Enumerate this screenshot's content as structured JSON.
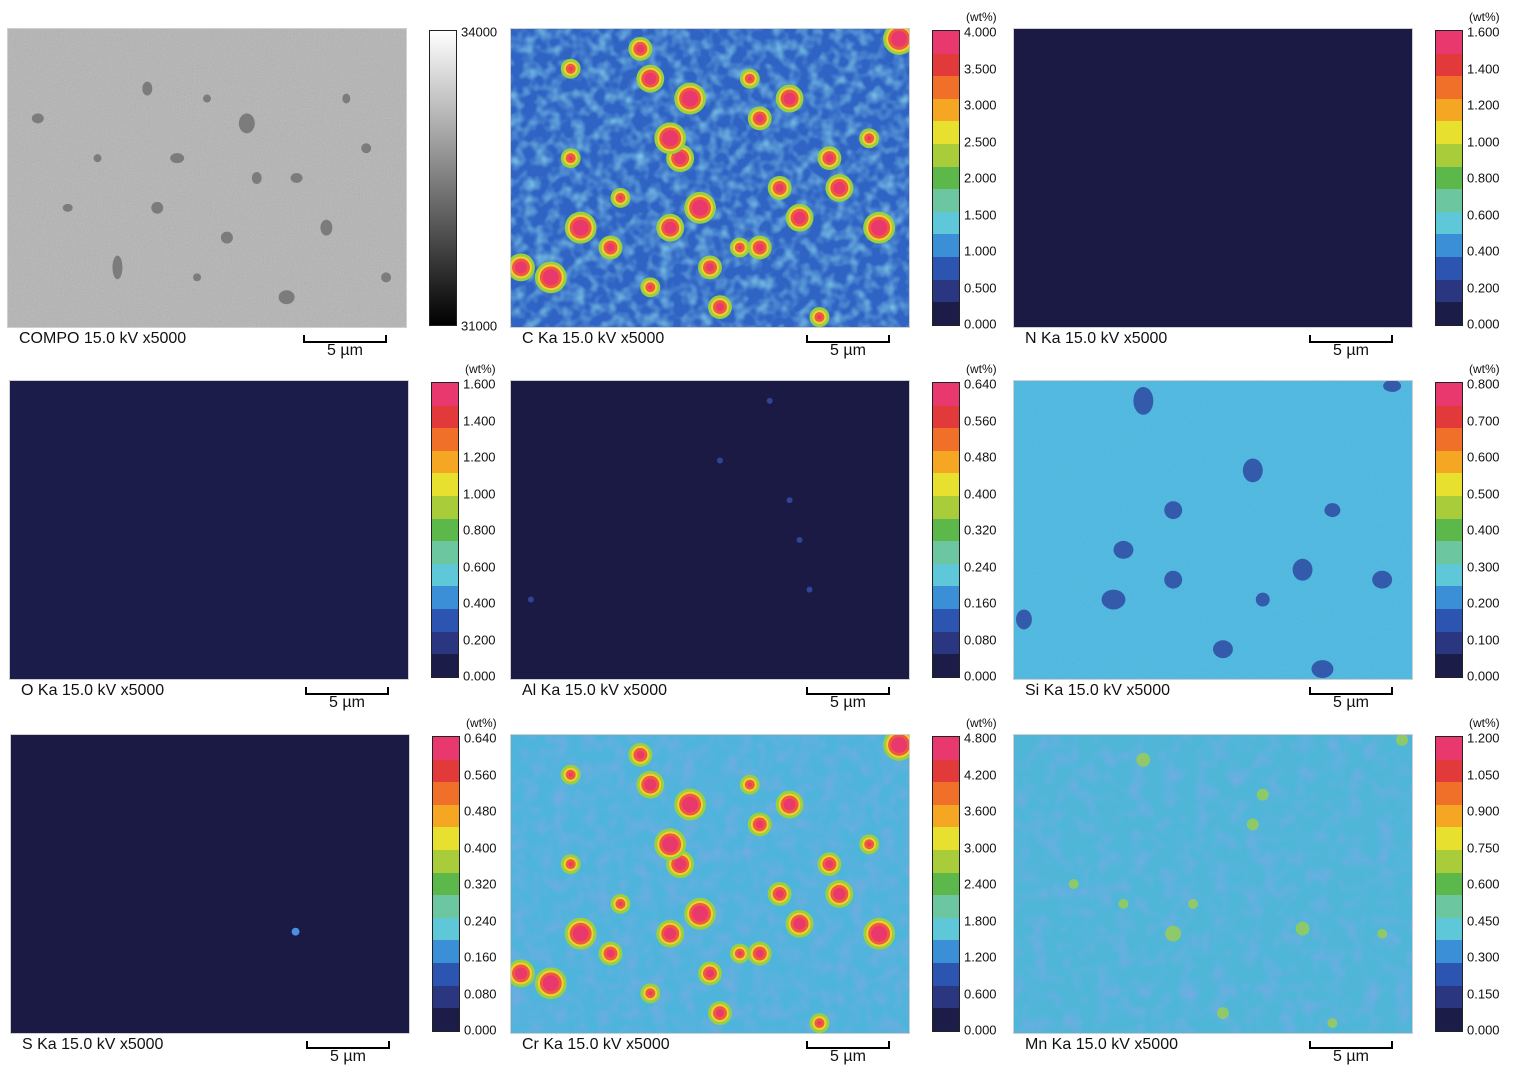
{
  "scale_label": "5 µm",
  "panels": [
    {
      "caption": "COMPO 15.0 kV x5000",
      "unit": "",
      "ticks": [
        "34000",
        "31000"
      ],
      "scale": "gray"
    },
    {
      "caption": "C Ka 15.0 kV x5000",
      "unit": "(wt%)",
      "ticks": [
        "4.000",
        "3.500",
        "3.000",
        "2.500",
        "2.000",
        "1.500",
        "1.000",
        "0.500",
        "0.000"
      ],
      "scale": "color"
    },
    {
      "caption": "N Ka 15.0 kV x5000",
      "unit": "(wt%)",
      "ticks": [
        "1.600",
        "1.400",
        "1.200",
        "1.000",
        "0.800",
        "0.600",
        "0.400",
        "0.200",
        "0.000"
      ],
      "scale": "color"
    },
    {
      "caption": "O Ka 15.0 kV x5000",
      "unit": "(wt%)",
      "ticks": [
        "1.600",
        "1.400",
        "1.200",
        "1.000",
        "0.800",
        "0.600",
        "0.400",
        "0.200",
        "0.000"
      ],
      "scale": "color"
    },
    {
      "caption": "Al Ka 15.0 kV x5000",
      "unit": "(wt%)",
      "ticks": [
        "0.640",
        "0.560",
        "0.480",
        "0.400",
        "0.320",
        "0.240",
        "0.160",
        "0.080",
        "0.000"
      ],
      "scale": "color"
    },
    {
      "caption": "Si Ka 15.0 kV x5000",
      "unit": "(wt%)",
      "ticks": [
        "0.800",
        "0.700",
        "0.600",
        "0.500",
        "0.400",
        "0.300",
        "0.200",
        "0.100",
        "0.000"
      ],
      "scale": "color"
    },
    {
      "caption": "S Ka 15.0 kV x5000",
      "unit": "(wt%)",
      "ticks": [
        "0.640",
        "0.560",
        "0.480",
        "0.400",
        "0.320",
        "0.240",
        "0.160",
        "0.080",
        "0.000"
      ],
      "scale": "color"
    },
    {
      "caption": "Cr Ka 15.0 kV x5000",
      "unit": "(wt%)",
      "ticks": [
        "4.800",
        "4.200",
        "3.600",
        "3.000",
        "2.400",
        "1.800",
        "1.200",
        "0.600",
        "0.000"
      ],
      "scale": "color"
    },
    {
      "caption": "Mn Ka 15.0 kV x5000",
      "unit": "(wt%)",
      "ticks": [
        "1.200",
        "1.050",
        "0.900",
        "0.750",
        "0.600",
        "0.450",
        "0.300",
        "0.150",
        "0.000"
      ],
      "scale": "color"
    }
  ],
  "colorscale": [
    "#e8386e",
    "#e23a3a",
    "#f0702a",
    "#f5a623",
    "#e8e02e",
    "#a8cc3a",
    "#5cb84a",
    "#6cc6a0",
    "#5ec8d8",
    "#3a8fd6",
    "#2b55b0",
    "#2a3680",
    "#1c1c48"
  ]
}
